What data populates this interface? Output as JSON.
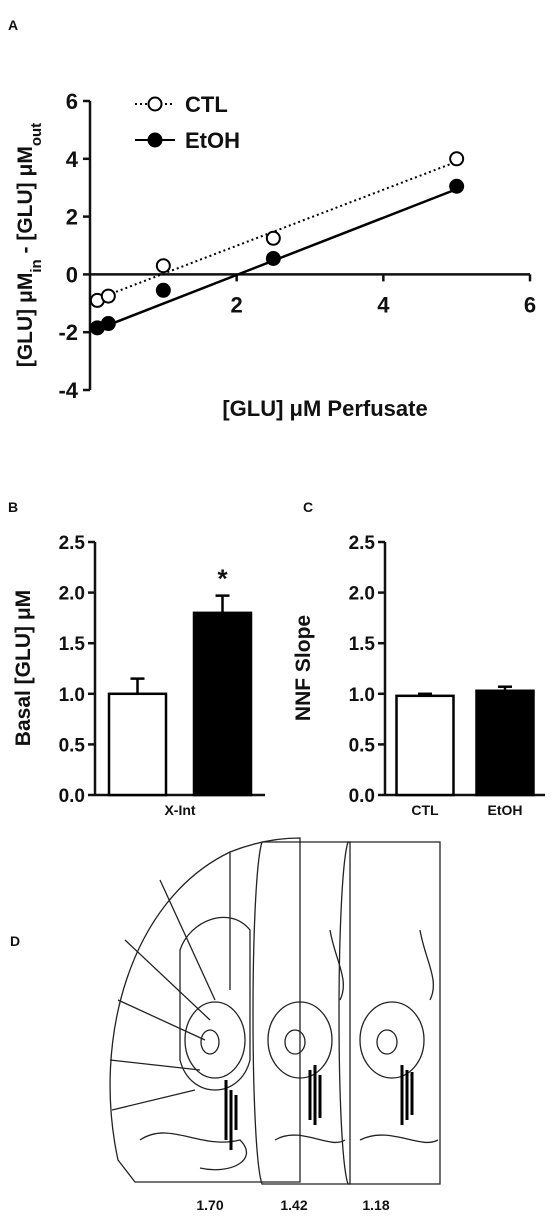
{
  "chart_data": [
    {
      "type": "scatter",
      "panel": "A",
      "xlabel": "[GLU] μM Perfusate",
      "ylabel": [
        {
          "text": "[GLU] μM"
        },
        {
          "text": "in",
          "sub": true
        },
        {
          "text": " - [GLU] μM"
        },
        {
          "text": "out",
          "sub": true
        }
      ],
      "xlim": [
        0,
        6
      ],
      "ylim": [
        -4,
        6
      ],
      "xticks": [
        2,
        4,
        6
      ],
      "yticks": [
        -4,
        -2,
        0,
        2,
        4,
        6
      ],
      "legend": "upper left",
      "x": [
        0.1,
        0.25,
        1,
        2.5,
        5
      ],
      "fit_x": [
        0.1,
        5
      ],
      "series": [
        {
          "name": "CTL",
          "color": "#ffffff",
          "dash": true,
          "values": [
            -0.9,
            -0.75,
            0.3,
            1.25,
            4.0
          ],
          "fit": [
            -0.85,
            3.9
          ]
        },
        {
          "name": "EtOH",
          "color": "#000000",
          "dash": false,
          "values": [
            -1.85,
            -1.7,
            -0.55,
            0.55,
            3.05
          ],
          "fit": [
            -1.9,
            2.95
          ]
        }
      ]
    },
    {
      "type": "bar",
      "panel": "B",
      "ylabel": "Basal [GLU] μM",
      "ylim": [
        0,
        2.5
      ],
      "yticks": [
        {
          "value": 0,
          "label": "0.0"
        },
        0.5,
        {
          "value": 1,
          "label": "1.0"
        },
        1.5,
        {
          "value": 2,
          "label": "2.0"
        },
        2.5
      ],
      "categories": [
        "X-Int"
      ],
      "annotation": "*",
      "series": [
        {
          "color": "#ffffff",
          "values": [
            1.0
          ],
          "errors": [
            0.15
          ]
        },
        {
          "color": "#000000",
          "values": [
            1.8
          ],
          "errors": [
            0.17
          ]
        }
      ]
    },
    {
      "type": "bar",
      "panel": "C",
      "ylabel": "NNF Slope",
      "ylim": [
        0,
        2.5
      ],
      "yticks": [
        {
          "value": 0,
          "label": "0.0"
        },
        0.5,
        {
          "value": 1,
          "label": "1.0"
        },
        1.5,
        {
          "value": 2,
          "label": "2.0"
        },
        2.5
      ],
      "categories": [
        "CTL",
        "EtOH"
      ],
      "series": [
        {
          "colors": [
            "#ffffff",
            "#000000"
          ],
          "values": [
            0.98,
            1.03
          ],
          "errors": [
            0.02,
            0.04
          ]
        }
      ]
    }
  ],
  "figure_d": {
    "panel": "D",
    "sections": [
      "1.70",
      "1.42",
      "1.18"
    ]
  }
}
